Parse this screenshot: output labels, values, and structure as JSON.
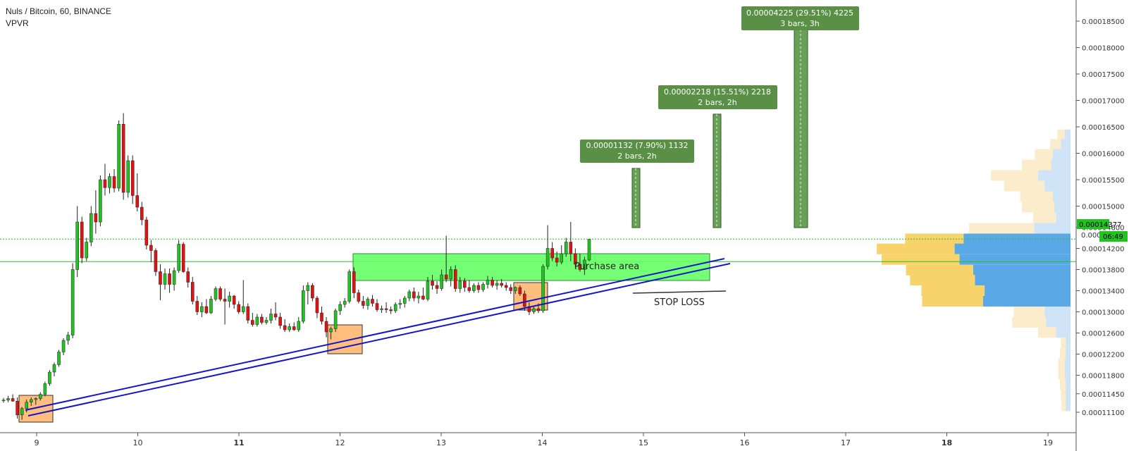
{
  "header": {
    "symbol_title": "Nuls / Bitcoin, 60, BINANCE",
    "indicator": "VPVR"
  },
  "annotations": {
    "purchase_area": "Purchase area",
    "stop_loss": "STOP LOSS",
    "targets": [
      {
        "line1": "0.00001132 (7.90%) 1132",
        "line2": "2 bars, 2h"
      },
      {
        "line1": "0.00002218 (15.51%) 2218",
        "line2": "2 bars, 2h"
      },
      {
        "line1": "0.00004225 (29.51%) 4225",
        "line2": "3 bars, 3h"
      }
    ]
  },
  "price_axis": {
    "last_price": "0.00014377",
    "countdown": "06:49",
    "partial_label": "0.0001"
  },
  "colors": {
    "up": "#21c321",
    "down": "#e31212",
    "trendline": "#1515c8",
    "purchase_area": "#66ff66",
    "target_box": "#4f8f3a",
    "highlight_box": "#ffb366",
    "vp_yellow": "#f8d26b",
    "vp_blue": "#5aa9e6"
  },
  "chart_data": {
    "type": "candlestick",
    "title": "Nuls / Bitcoin, 60, BINANCE",
    "x_ticks": [
      "9",
      "10",
      "11",
      "12",
      "13",
      "14",
      "15",
      "16",
      "17",
      "18",
      "19"
    ],
    "y_ticks": [
      "0.00018500",
      "0.00018000",
      "0.00017500",
      "0.00017000",
      "0.00016500",
      "0.00016000",
      "0.00015500",
      "0.00015000",
      "0.00014600",
      "0.00014200",
      "0.00013800",
      "0.00013400",
      "0.00013000",
      "0.00012600",
      "0.00012200",
      "0.00011800",
      "0.00011450",
      "0.00011100"
    ],
    "last_price": 0.00014377,
    "reference_price": 0.0001395,
    "candles_ohlc": [
      [
        0.0001132,
        0.0001137,
        0.0001128,
        0.0001133
      ],
      [
        0.0001133,
        0.0001141,
        0.0001129,
        0.0001136
      ],
      [
        0.0001136,
        0.0001144,
        0.000113,
        0.0001131
      ],
      [
        0.0001131,
        0.0001138,
        0.0001098,
        0.0001105
      ],
      [
        0.0001105,
        0.000112,
        0.0001096,
        0.0001117
      ],
      [
        0.0001117,
        0.0001134,
        0.000111,
        0.0001129
      ],
      [
        0.0001129,
        0.0001138,
        0.0001122,
        0.0001134
      ],
      [
        0.0001134,
        0.0001138,
        0.0001124,
        0.0001136
      ],
      [
        0.0001136,
        0.0001148,
        0.0001132,
        0.0001144
      ],
      [
        0.0001144,
        0.0001168,
        0.000114,
        0.0001164
      ],
      [
        0.0001164,
        0.000119,
        0.000116,
        0.0001186
      ],
      [
        0.0001186,
        0.0001204,
        0.0001178,
        0.00012
      ],
      [
        0.00012,
        0.0001228,
        0.0001196,
        0.0001224
      ],
      [
        0.0001224,
        0.000125,
        0.0001218,
        0.0001246
      ],
      [
        0.0001246,
        0.0001262,
        0.0001238,
        0.0001256
      ],
      [
        0.0001256,
        0.0001392,
        0.000125,
        0.000138
      ],
      [
        0.000138,
        0.00015,
        0.0001366,
        0.000147
      ],
      [
        0.000147,
        0.000148,
        0.0001392,
        0.0001402
      ],
      [
        0.0001402,
        0.000144,
        0.0001396,
        0.0001432
      ],
      [
        0.0001432,
        0.00015,
        0.0001424,
        0.0001486
      ],
      [
        0.0001486,
        0.000153,
        0.0001448,
        0.000147
      ],
      [
        0.000147,
        0.0001558,
        0.0001462,
        0.000155
      ],
      [
        0.000155,
        0.000158,
        0.000152,
        0.0001535
      ],
      [
        0.0001535,
        0.0001562,
        0.0001524,
        0.0001556
      ],
      [
        0.0001556,
        0.000157,
        0.0001526,
        0.0001534
      ],
      [
        0.0001534,
        0.0001662,
        0.0001528,
        0.0001655
      ],
      [
        0.0001655,
        0.0001676,
        0.0001512,
        0.0001526
      ],
      [
        0.0001526,
        0.0001596,
        0.0001516,
        0.0001586
      ],
      [
        0.0001586,
        0.0001596,
        0.0001504,
        0.000152
      ],
      [
        0.000152,
        0.0001562,
        0.000149,
        0.0001498
      ],
      [
        0.0001498,
        0.0001508,
        0.0001464,
        0.0001474
      ],
      [
        0.0001474,
        0.000148,
        0.0001418,
        0.0001426
      ],
      [
        0.0001426,
        0.0001436,
        0.0001394,
        0.0001416
      ],
      [
        0.0001416,
        0.000142,
        0.0001368,
        0.0001376
      ],
      [
        0.0001376,
        0.000139,
        0.0001322,
        0.0001352
      ],
      [
        0.0001352,
        0.0001382,
        0.0001342,
        0.0001372
      ],
      [
        0.0001372,
        0.0001382,
        0.0001336,
        0.0001352
      ],
      [
        0.0001352,
        0.0001384,
        0.000134,
        0.0001378
      ],
      [
        0.0001378,
        0.0001436,
        0.0001374,
        0.0001428
      ],
      [
        0.0001428,
        0.0001432,
        0.0001374,
        0.0001376
      ],
      [
        0.0001376,
        0.0001384,
        0.0001346,
        0.0001356
      ],
      [
        0.0001356,
        0.0001366,
        0.0001314,
        0.000132
      ],
      [
        0.000132,
        0.000133,
        0.0001294,
        0.00013
      ],
      [
        0.00013,
        0.0001318,
        0.000129,
        0.000131
      ],
      [
        0.000131,
        0.0001324,
        0.0001296,
        0.0001298
      ],
      [
        0.0001298,
        0.000133,
        0.0001296,
        0.0001324
      ],
      [
        0.0001324,
        0.0001348,
        0.000132,
        0.0001344
      ],
      [
        0.0001344,
        0.0001348,
        0.000132,
        0.0001324
      ],
      [
        0.0001324,
        0.0001344,
        0.0001276,
        0.000132
      ],
      [
        0.000132,
        0.0001338,
        0.0001308,
        0.000133
      ],
      [
        0.000133,
        0.0001332,
        0.0001306,
        0.0001314
      ],
      [
        0.0001314,
        0.000132,
        0.0001296,
        0.00013
      ],
      [
        0.00013,
        0.000136,
        0.0001296,
        0.000131
      ],
      [
        0.000131,
        0.0001316,
        0.0001278,
        0.0001284
      ],
      [
        0.0001284,
        0.0001298,
        0.0001272,
        0.0001276
      ],
      [
        0.0001276,
        0.0001296,
        0.0001272,
        0.000129
      ],
      [
        0.000129,
        0.0001296,
        0.0001276,
        0.000128
      ],
      [
        0.000128,
        0.000129,
        0.0001276,
        0.0001284
      ],
      [
        0.0001284,
        0.0001306,
        0.0001278,
        0.0001296
      ],
      [
        0.0001296,
        0.0001318,
        0.0001284,
        0.000129
      ],
      [
        0.000129,
        0.0001298,
        0.0001268,
        0.0001274
      ],
      [
        0.0001274,
        0.0001286,
        0.0001262,
        0.0001266
      ],
      [
        0.0001266,
        0.0001278,
        0.0001262,
        0.0001272
      ],
      [
        0.0001272,
        0.000128,
        0.0001264,
        0.0001266
      ],
      [
        0.0001266,
        0.000129,
        0.0001262,
        0.0001282
      ],
      [
        0.0001282,
        0.000135,
        0.0001278,
        0.000134
      ],
      [
        0.000134,
        0.0001356,
        0.0001314,
        0.000135
      ],
      [
        0.000135,
        0.0001354,
        0.000132,
        0.0001326
      ],
      [
        0.0001326,
        0.000133,
        0.0001288,
        0.0001298
      ],
      [
        0.0001298,
        0.000131,
        0.0001276,
        0.0001282
      ],
      [
        0.0001282,
        0.000129,
        0.0001252,
        0.0001262
      ],
      [
        0.0001262,
        0.0001272,
        0.0001248,
        0.0001268
      ],
      [
        0.0001268,
        0.0001306,
        0.0001262,
        0.0001302
      ],
      [
        0.0001302,
        0.000132,
        0.0001294,
        0.0001314
      ],
      [
        0.0001314,
        0.0001326,
        0.0001308,
        0.000132
      ],
      [
        0.000132,
        0.000138,
        0.0001316,
        0.0001376
      ],
      [
        0.0001376,
        0.0001384,
        0.0001326,
        0.0001336
      ],
      [
        0.0001336,
        0.0001342,
        0.0001316,
        0.000132
      ],
      [
        0.000132,
        0.000133,
        0.0001306,
        0.0001312
      ],
      [
        0.0001312,
        0.0001328,
        0.0001304,
        0.0001324
      ],
      [
        0.0001324,
        0.0001332,
        0.000131,
        0.0001316
      ],
      [
        0.0001316,
        0.0001324,
        0.00013,
        0.0001304
      ],
      [
        0.0001304,
        0.0001312,
        0.0001298,
        0.0001306
      ],
      [
        0.0001306,
        0.0001318,
        0.0001298,
        0.0001304
      ],
      [
        0.0001304,
        0.000131,
        0.0001296,
        0.0001302
      ],
      [
        0.0001302,
        0.0001318,
        0.0001298,
        0.0001314
      ],
      [
        0.0001314,
        0.0001324,
        0.0001306,
        0.0001316
      ],
      [
        0.0001316,
        0.000133,
        0.0001308,
        0.0001326
      ],
      [
        0.0001326,
        0.0001342,
        0.000132,
        0.0001338
      ],
      [
        0.0001338,
        0.0001346,
        0.000132,
        0.0001326
      ],
      [
        0.0001326,
        0.0001338,
        0.0001316,
        0.000133
      ],
      [
        0.000133,
        0.0001346,
        0.0001322,
        0.0001324
      ],
      [
        0.0001324,
        0.0001366,
        0.000132,
        0.0001358
      ],
      [
        0.0001358,
        0.000137,
        0.0001342,
        0.000135
      ],
      [
        0.000135,
        0.0001358,
        0.0001334,
        0.0001344
      ],
      [
        0.0001344,
        0.000138,
        0.000134,
        0.000137
      ],
      [
        0.000137,
        0.0001444,
        0.0001356,
        0.0001362
      ],
      [
        0.0001362,
        0.0001386,
        0.0001348,
        0.000138
      ],
      [
        0.000138,
        0.0001388,
        0.0001338,
        0.0001344
      ],
      [
        0.0001344,
        0.0001366,
        0.0001336,
        0.0001358
      ],
      [
        0.0001358,
        0.0001364,
        0.0001338,
        0.0001346
      ],
      [
        0.0001346,
        0.000136,
        0.0001336,
        0.000134
      ],
      [
        0.000134,
        0.0001354,
        0.0001336,
        0.000135
      ],
      [
        0.000135,
        0.0001356,
        0.0001336,
        0.0001342
      ],
      [
        0.0001342,
        0.0001356,
        0.0001338,
        0.0001352
      ],
      [
        0.0001352,
        0.0001368,
        0.0001344,
        0.000136
      ],
      [
        0.000136,
        0.0001366,
        0.0001346,
        0.000135
      ],
      [
        0.000135,
        0.000136,
        0.0001342,
        0.0001354
      ],
      [
        0.0001354,
        0.0001362,
        0.0001346,
        0.000135
      ],
      [
        0.000135,
        0.0001356,
        0.000134,
        0.0001346
      ],
      [
        0.0001346,
        0.0001352,
        0.0001334,
        0.000134
      ],
      [
        0.000134,
        0.0001348,
        0.0001334,
        0.0001346
      ],
      [
        0.0001346,
        0.000135,
        0.000133,
        0.0001334
      ],
      [
        0.0001334,
        0.000134,
        0.0001302,
        0.000131
      ],
      [
        0.000131,
        0.0001318,
        0.0001294,
        0.00013
      ],
      [
        0.00013,
        0.000131,
        0.0001296,
        0.0001306
      ],
      [
        0.0001306,
        0.0001316,
        0.0001298,
        0.0001302
      ],
      [
        0.0001302,
        0.000139,
        0.0001298,
        0.0001386
      ],
      [
        0.0001386,
        0.0001464,
        0.000138,
        0.000142
      ],
      [
        0.000142,
        0.0001432,
        0.0001396,
        0.0001402
      ],
      [
        0.0001402,
        0.0001414,
        0.0001386,
        0.0001394
      ],
      [
        0.0001394,
        0.0001426,
        0.000139,
        0.000141
      ],
      [
        0.000141,
        0.000144,
        0.0001404,
        0.0001432
      ],
      [
        0.0001432,
        0.000147,
        0.0001396,
        0.000141
      ],
      [
        0.000141,
        0.000142,
        0.0001384,
        0.000139
      ],
      [
        0.000139,
        0.000141,
        0.0001376,
        0.000138
      ],
      [
        0.000138,
        0.0001404,
        0.000137,
        0.0001398
      ],
      [
        0.0001398,
        0.0001438,
        0.0001396,
        0.0001437
      ]
    ],
    "volume_profile": [
      {
        "price": 0.0001635,
        "buy": 9,
        "sell": 7
      },
      {
        "price": 0.0001617,
        "buy": 13,
        "sell": 12
      },
      {
        "price": 0.0001598,
        "buy": 22,
        "sell": 22
      },
      {
        "price": 0.0001578,
        "buy": 36,
        "sell": 24
      },
      {
        "price": 0.0001558,
        "buy": 58,
        "sell": 40
      },
      {
        "price": 0.0001538,
        "buy": 50,
        "sell": 32
      },
      {
        "price": 0.0001518,
        "buy": 40,
        "sell": 22
      },
      {
        "price": 0.0001498,
        "buy": 40,
        "sell": 20
      },
      {
        "price": 0.0001478,
        "buy": 28,
        "sell": 18
      },
      {
        "price": 0.0001458,
        "buy": 80,
        "sell": 45
      },
      {
        "price": 0.0001438,
        "buy": 72,
        "sell": 132
      },
      {
        "price": 0.0001419,
        "buy": 96,
        "sell": 143
      },
      {
        "price": 0.0001399,
        "buy": 96,
        "sell": 137
      },
      {
        "price": 0.0001379,
        "buy": 83,
        "sell": 120
      },
      {
        "price": 0.000136,
        "buy": 80,
        "sell": 118
      },
      {
        "price": 0.000134,
        "buy": 78,
        "sell": 106
      },
      {
        "price": 0.000132,
        "buy": 75,
        "sell": 108
      },
      {
        "price": 0.00013,
        "buy": 38,
        "sell": 32
      },
      {
        "price": 0.000128,
        "buy": 42,
        "sell": 30
      },
      {
        "price": 0.0001261,
        "buy": 22,
        "sell": 18
      },
      {
        "price": 0.0001241,
        "buy": 6,
        "sell": 6
      },
      {
        "price": 0.0001221,
        "buy": 7,
        "sell": 6
      },
      {
        "price": 0.0001202,
        "buy": 8,
        "sell": 7
      },
      {
        "price": 0.0001182,
        "buy": 8,
        "sell": 7
      },
      {
        "price": 0.0001162,
        "buy": 7,
        "sell": 6
      },
      {
        "price": 0.0001142,
        "buy": 6,
        "sell": 6
      },
      {
        "price": 0.0001122,
        "buy": 5,
        "sell": 6
      }
    ]
  }
}
